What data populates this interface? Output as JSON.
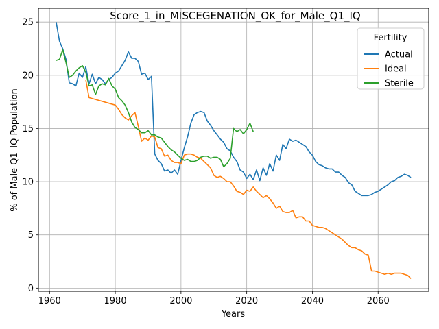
{
  "chart_data": {
    "type": "line",
    "title": "Score_1_in_MISCEGENATION_OK_for_Male_Q1_IQ",
    "xlabel": "Years",
    "ylabel": "% of Male Q1_IQ Population",
    "xlim": [
      1956.6,
      2075.4
    ],
    "ylim": [
      -0.3,
      26.3
    ],
    "x_ticks": [
      1960,
      1980,
      2000,
      2020,
      2040,
      2060
    ],
    "y_ticks": [
      0,
      5,
      10,
      15,
      20,
      25
    ],
    "grid": true,
    "legend": {
      "title": "Fertility",
      "placement": "top-right"
    },
    "series": [
      {
        "name": "Actual",
        "color": "#1f77b4",
        "points": [
          [
            1962,
            25.0
          ],
          [
            1963,
            23.2
          ],
          [
            1964,
            22.5
          ],
          [
            1965,
            21.5
          ],
          [
            1966,
            19.3
          ],
          [
            1967,
            19.2
          ],
          [
            1968,
            19.0
          ],
          [
            1969,
            20.2
          ],
          [
            1970,
            19.8
          ],
          [
            1971,
            20.8
          ],
          [
            1972,
            19.2
          ],
          [
            1973,
            20.1
          ],
          [
            1974,
            19.2
          ],
          [
            1975,
            19.8
          ],
          [
            1976,
            19.6
          ],
          [
            1977,
            19.2
          ],
          [
            1978,
            19.6
          ],
          [
            1979,
            19.8
          ],
          [
            1980,
            20.2
          ],
          [
            1981,
            20.4
          ],
          [
            1982,
            20.9
          ],
          [
            1983,
            21.4
          ],
          [
            1984,
            22.2
          ],
          [
            1985,
            21.6
          ],
          [
            1986,
            21.6
          ],
          [
            1987,
            21.3
          ],
          [
            1988,
            20.1
          ],
          [
            1989,
            20.2
          ],
          [
            1990,
            19.6
          ],
          [
            1991,
            19.9
          ],
          [
            1992,
            12.6
          ],
          [
            1993,
            12.0
          ],
          [
            1994,
            11.7
          ],
          [
            1995,
            11.0
          ],
          [
            1996,
            11.1
          ],
          [
            1997,
            10.8
          ],
          [
            1998,
            11.1
          ],
          [
            1999,
            10.7
          ],
          [
            2000,
            12.0
          ],
          [
            2001,
            13.2
          ],
          [
            2002,
            14.2
          ],
          [
            2003,
            15.5
          ],
          [
            2004,
            16.3
          ],
          [
            2005,
            16.5
          ],
          [
            2006,
            16.6
          ],
          [
            2007,
            16.5
          ],
          [
            2008,
            15.7
          ],
          [
            2009,
            15.3
          ],
          [
            2010,
            14.8
          ],
          [
            2011,
            14.4
          ],
          [
            2012,
            14.0
          ],
          [
            2013,
            13.7
          ],
          [
            2014,
            13.1
          ],
          [
            2015,
            12.9
          ],
          [
            2016,
            12.3
          ],
          [
            2017,
            11.9
          ],
          [
            2018,
            11.1
          ],
          [
            2019,
            10.9
          ],
          [
            2020,
            10.3
          ],
          [
            2021,
            10.7
          ],
          [
            2022,
            10.2
          ],
          [
            2023,
            11.1
          ],
          [
            2024,
            10.1
          ],
          [
            2025,
            11.3
          ],
          [
            2026,
            10.6
          ],
          [
            2027,
            11.7
          ],
          [
            2028,
            11.0
          ],
          [
            2029,
            12.5
          ],
          [
            2030,
            12.0
          ],
          [
            2031,
            13.5
          ],
          [
            2032,
            13.1
          ],
          [
            2033,
            14.0
          ],
          [
            2034,
            13.8
          ],
          [
            2035,
            13.9
          ],
          [
            2036,
            13.7
          ],
          [
            2037,
            13.5
          ],
          [
            2038,
            13.3
          ],
          [
            2039,
            12.8
          ],
          [
            2040,
            12.5
          ],
          [
            2041,
            11.9
          ],
          [
            2042,
            11.6
          ],
          [
            2043,
            11.5
          ],
          [
            2044,
            11.3
          ],
          [
            2045,
            11.2
          ],
          [
            2046,
            11.2
          ],
          [
            2047,
            10.9
          ],
          [
            2048,
            10.9
          ],
          [
            2049,
            10.6
          ],
          [
            2050,
            10.4
          ],
          [
            2051,
            9.9
          ],
          [
            2052,
            9.7
          ],
          [
            2053,
            9.1
          ],
          [
            2054,
            8.9
          ],
          [
            2055,
            8.7
          ],
          [
            2056,
            8.7
          ],
          [
            2057,
            8.7
          ],
          [
            2058,
            8.8
          ],
          [
            2059,
            9.0
          ],
          [
            2060,
            9.1
          ],
          [
            2061,
            9.3
          ],
          [
            2062,
            9.5
          ],
          [
            2063,
            9.7
          ],
          [
            2064,
            10.0
          ],
          [
            2065,
            10.1
          ],
          [
            2066,
            10.4
          ],
          [
            2067,
            10.5
          ],
          [
            2068,
            10.7
          ],
          [
            2069,
            10.6
          ],
          [
            2070,
            10.4
          ]
        ]
      },
      {
        "name": "Ideal",
        "color": "#ff7f0e",
        "points": [
          [
            1971,
            19.6
          ],
          [
            1972,
            17.9
          ],
          [
            1980,
            17.2
          ],
          [
            1981,
            16.8
          ],
          [
            1982,
            16.3
          ],
          [
            1983,
            16.0
          ],
          [
            1984,
            15.8
          ],
          [
            1985,
            16.2
          ],
          [
            1986,
            16.5
          ],
          [
            1987,
            15.2
          ],
          [
            1988,
            13.8
          ],
          [
            1989,
            14.1
          ],
          [
            1990,
            13.9
          ],
          [
            1991,
            14.3
          ],
          [
            1992,
            14.2
          ],
          [
            1993,
            13.2
          ],
          [
            1994,
            13.1
          ],
          [
            1995,
            12.4
          ],
          [
            1996,
            12.5
          ],
          [
            1997,
            12.0
          ],
          [
            1998,
            11.8
          ],
          [
            1999,
            11.8
          ],
          [
            2000,
            11.7
          ],
          [
            2001,
            12.5
          ],
          [
            2002,
            12.6
          ],
          [
            2003,
            12.6
          ],
          [
            2004,
            12.5
          ],
          [
            2005,
            12.3
          ],
          [
            2006,
            12.2
          ],
          [
            2007,
            11.9
          ],
          [
            2008,
            11.6
          ],
          [
            2009,
            11.3
          ],
          [
            2010,
            10.6
          ],
          [
            2011,
            10.4
          ],
          [
            2012,
            10.5
          ],
          [
            2013,
            10.3
          ],
          [
            2014,
            10.0
          ],
          [
            2015,
            10.0
          ],
          [
            2016,
            9.6
          ],
          [
            2017,
            9.1
          ],
          [
            2018,
            9.0
          ],
          [
            2019,
            8.8
          ],
          [
            2020,
            9.2
          ],
          [
            2021,
            9.1
          ],
          [
            2022,
            9.5
          ],
          [
            2023,
            9.1
          ],
          [
            2024,
            8.8
          ],
          [
            2025,
            8.5
          ],
          [
            2026,
            8.7
          ],
          [
            2027,
            8.4
          ],
          [
            2028,
            8.0
          ],
          [
            2029,
            7.5
          ],
          [
            2030,
            7.7
          ],
          [
            2031,
            7.2
          ],
          [
            2032,
            7.1
          ],
          [
            2033,
            7.1
          ],
          [
            2034,
            7.3
          ],
          [
            2035,
            6.6
          ],
          [
            2036,
            6.7
          ],
          [
            2037,
            6.7
          ],
          [
            2038,
            6.3
          ],
          [
            2039,
            6.3
          ],
          [
            2040,
            5.9
          ],
          [
            2041,
            5.8
          ],
          [
            2042,
            5.7
          ],
          [
            2043,
            5.7
          ],
          [
            2044,
            5.6
          ],
          [
            2045,
            5.4
          ],
          [
            2046,
            5.2
          ],
          [
            2047,
            5.0
          ],
          [
            2048,
            4.8
          ],
          [
            2049,
            4.6
          ],
          [
            2050,
            4.3
          ],
          [
            2051,
            4.0
          ],
          [
            2052,
            3.8
          ],
          [
            2053,
            3.8
          ],
          [
            2054,
            3.6
          ],
          [
            2055,
            3.5
          ],
          [
            2056,
            3.2
          ],
          [
            2057,
            3.1
          ],
          [
            2058,
            1.6
          ],
          [
            2059,
            1.6
          ],
          [
            2060,
            1.5
          ],
          [
            2061,
            1.4
          ],
          [
            2062,
            1.3
          ],
          [
            2063,
            1.4
          ],
          [
            2064,
            1.3
          ],
          [
            2065,
            1.4
          ],
          [
            2066,
            1.4
          ],
          [
            2067,
            1.4
          ],
          [
            2068,
            1.3
          ],
          [
            2069,
            1.2
          ],
          [
            2070,
            0.9
          ]
        ]
      },
      {
        "name": "Sterile",
        "color": "#2ca02c",
        "points": [
          [
            1962,
            21.4
          ],
          [
            1963,
            21.5
          ],
          [
            1964,
            22.4
          ],
          [
            1965,
            21.2
          ],
          [
            1966,
            19.8
          ],
          [
            1967,
            20.0
          ],
          [
            1968,
            20.4
          ],
          [
            1969,
            20.7
          ],
          [
            1970,
            20.9
          ],
          [
            1971,
            20.3
          ],
          [
            1972,
            19.0
          ],
          [
            1973,
            19.1
          ],
          [
            1974,
            18.2
          ],
          [
            1975,
            19.0
          ],
          [
            1976,
            19.2
          ],
          [
            1977,
            19.1
          ],
          [
            1978,
            19.7
          ],
          [
            1979,
            19.0
          ],
          [
            1980,
            18.7
          ],
          [
            1981,
            17.9
          ],
          [
            1982,
            17.6
          ],
          [
            1983,
            17.2
          ],
          [
            1984,
            16.5
          ],
          [
            1985,
            15.6
          ],
          [
            1986,
            15.1
          ],
          [
            1987,
            14.9
          ],
          [
            1988,
            14.6
          ],
          [
            1989,
            14.6
          ],
          [
            1990,
            14.8
          ],
          [
            1991,
            14.4
          ],
          [
            1992,
            14.4
          ],
          [
            1993,
            14.2
          ],
          [
            1994,
            14.1
          ],
          [
            1995,
            13.7
          ],
          [
            1996,
            13.3
          ],
          [
            1997,
            13.0
          ],
          [
            1998,
            12.8
          ],
          [
            1999,
            12.5
          ],
          [
            2000,
            12.2
          ],
          [
            2001,
            12.0
          ],
          [
            2002,
            12.1
          ],
          [
            2003,
            11.9
          ],
          [
            2004,
            11.9
          ],
          [
            2005,
            12.0
          ],
          [
            2006,
            12.3
          ],
          [
            2007,
            12.4
          ],
          [
            2008,
            12.4
          ],
          [
            2009,
            12.2
          ],
          [
            2010,
            12.3
          ],
          [
            2011,
            12.3
          ],
          [
            2012,
            12.1
          ],
          [
            2013,
            11.4
          ],
          [
            2014,
            11.7
          ],
          [
            2015,
            12.2
          ],
          [
            2016,
            15.0
          ],
          [
            2017,
            14.7
          ],
          [
            2018,
            14.9
          ],
          [
            2019,
            14.5
          ],
          [
            2020,
            14.9
          ],
          [
            2021,
            15.5
          ],
          [
            2022,
            14.7
          ]
        ]
      }
    ]
  }
}
